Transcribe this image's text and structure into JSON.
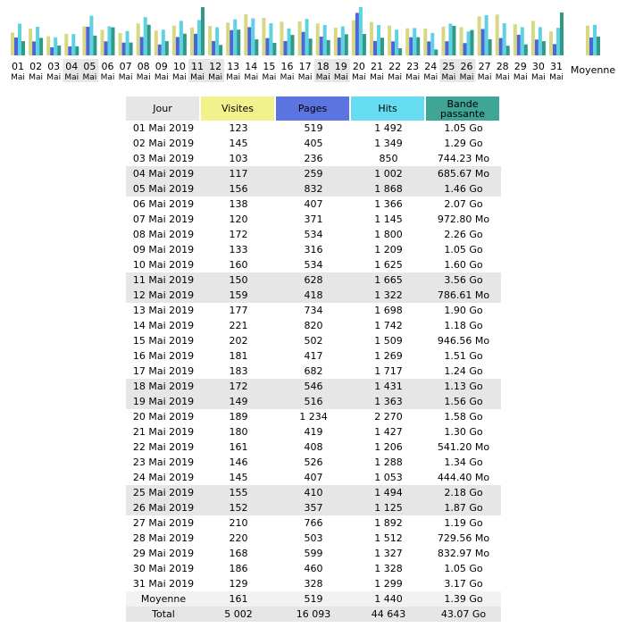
{
  "colors": {
    "visits": "#d8d884",
    "pages": "#4c66d8",
    "hits": "#5fd2e2",
    "bandwidth": "#2f9a88",
    "weekend_bg": "#e6e6e6"
  },
  "chart_data": {
    "type": "bar",
    "categories": [
      "01",
      "02",
      "03",
      "04",
      "05",
      "06",
      "07",
      "08",
      "09",
      "10",
      "11",
      "12",
      "13",
      "14",
      "15",
      "16",
      "17",
      "18",
      "19",
      "20",
      "21",
      "22",
      "23",
      "24",
      "25",
      "26",
      "27",
      "28",
      "29",
      "30",
      "31"
    ],
    "category_sublabel": "Mai",
    "weekend_days": [
      "04",
      "05",
      "11",
      "12",
      "18",
      "19",
      "25",
      "26"
    ],
    "series": [
      {
        "name": "Visites",
        "values": [
          123,
          145,
          103,
          117,
          156,
          138,
          120,
          172,
          133,
          160,
          150,
          159,
          177,
          221,
          202,
          181,
          183,
          172,
          149,
          189,
          180,
          161,
          146,
          145,
          155,
          152,
          210,
          220,
          168,
          186,
          129
        ]
      },
      {
        "name": "Pages",
        "values": [
          519,
          405,
          236,
          259,
          832,
          407,
          371,
          534,
          316,
          534,
          628,
          418,
          734,
          820,
          502,
          417,
          682,
          546,
          516,
          1234,
          419,
          408,
          526,
          407,
          410,
          357,
          766,
          503,
          599,
          460,
          328
        ]
      },
      {
        "name": "Hits",
        "values": [
          1492,
          1349,
          850,
          1002,
          1868,
          1366,
          1145,
          1800,
          1209,
          1625,
          1665,
          1322,
          1698,
          1742,
          1509,
          1269,
          1717,
          1431,
          1363,
          2270,
          1427,
          1206,
          1288,
          1053,
          1494,
          1125,
          1892,
          1512,
          1327,
          1328,
          1299
        ]
      },
      {
        "name": "Bande passante",
        "unit": "Go",
        "values": [
          1.05,
          1.29,
          0.727,
          0.67,
          1.46,
          2.07,
          0.95,
          2.26,
          1.05,
          1.6,
          3.56,
          0.768,
          1.9,
          1.18,
          0.924,
          1.51,
          1.24,
          1.13,
          1.56,
          1.58,
          1.3,
          0.529,
          1.34,
          0.434,
          2.18,
          1.87,
          1.19,
          0.713,
          0.813,
          1.05,
          3.17
        ]
      }
    ],
    "average": {
      "label": "Moyenne",
      "visits": 161,
      "pages": 519,
      "hits": 1440,
      "bandwidth": 1.39
    }
  },
  "table": {
    "headers": {
      "day": "Jour",
      "visits": "Visites",
      "pages": "Pages",
      "hits": "Hits",
      "bw_line1": "Bande",
      "bw_line2": "passante"
    },
    "rows": [
      {
        "day": "01 Mai 2019",
        "visits": "123",
        "pages": "519",
        "hits": "1 492",
        "bw": "1.05 Go",
        "weekend": false
      },
      {
        "day": "02 Mai 2019",
        "visits": "145",
        "pages": "405",
        "hits": "1 349",
        "bw": "1.29 Go",
        "weekend": false
      },
      {
        "day": "03 Mai 2019",
        "visits": "103",
        "pages": "236",
        "hits": "850",
        "bw": "744.23 Mo",
        "weekend": false
      },
      {
        "day": "04 Mai 2019",
        "visits": "117",
        "pages": "259",
        "hits": "1 002",
        "bw": "685.67 Mo",
        "weekend": true
      },
      {
        "day": "05 Mai 2019",
        "visits": "156",
        "pages": "832",
        "hits": "1 868",
        "bw": "1.46 Go",
        "weekend": true
      },
      {
        "day": "06 Mai 2019",
        "visits": "138",
        "pages": "407",
        "hits": "1 366",
        "bw": "2.07 Go",
        "weekend": false
      },
      {
        "day": "07 Mai 2019",
        "visits": "120",
        "pages": "371",
        "hits": "1 145",
        "bw": "972.80 Mo",
        "weekend": false
      },
      {
        "day": "08 Mai 2019",
        "visits": "172",
        "pages": "534",
        "hits": "1 800",
        "bw": "2.26 Go",
        "weekend": false
      },
      {
        "day": "09 Mai 2019",
        "visits": "133",
        "pages": "316",
        "hits": "1 209",
        "bw": "1.05 Go",
        "weekend": false
      },
      {
        "day": "10 Mai 2019",
        "visits": "160",
        "pages": "534",
        "hits": "1 625",
        "bw": "1.60 Go",
        "weekend": false
      },
      {
        "day": "11 Mai 2019",
        "visits": "150",
        "pages": "628",
        "hits": "1 665",
        "bw": "3.56 Go",
        "weekend": true
      },
      {
        "day": "12 Mai 2019",
        "visits": "159",
        "pages": "418",
        "hits": "1 322",
        "bw": "786.61 Mo",
        "weekend": true
      },
      {
        "day": "13 Mai 2019",
        "visits": "177",
        "pages": "734",
        "hits": "1 698",
        "bw": "1.90 Go",
        "weekend": false
      },
      {
        "day": "14 Mai 2019",
        "visits": "221",
        "pages": "820",
        "hits": "1 742",
        "bw": "1.18 Go",
        "weekend": false
      },
      {
        "day": "15 Mai 2019",
        "visits": "202",
        "pages": "502",
        "hits": "1 509",
        "bw": "946.56 Mo",
        "weekend": false
      },
      {
        "day": "16 Mai 2019",
        "visits": "181",
        "pages": "417",
        "hits": "1 269",
        "bw": "1.51 Go",
        "weekend": false
      },
      {
        "day": "17 Mai 2019",
        "visits": "183",
        "pages": "682",
        "hits": "1 717",
        "bw": "1.24 Go",
        "weekend": false
      },
      {
        "day": "18 Mai 2019",
        "visits": "172",
        "pages": "546",
        "hits": "1 431",
        "bw": "1.13 Go",
        "weekend": true
      },
      {
        "day": "19 Mai 2019",
        "visits": "149",
        "pages": "516",
        "hits": "1 363",
        "bw": "1.56 Go",
        "weekend": true
      },
      {
        "day": "20 Mai 2019",
        "visits": "189",
        "pages": "1 234",
        "hits": "2 270",
        "bw": "1.58 Go",
        "weekend": false
      },
      {
        "day": "21 Mai 2019",
        "visits": "180",
        "pages": "419",
        "hits": "1 427",
        "bw": "1.30 Go",
        "weekend": false
      },
      {
        "day": "22 Mai 2019",
        "visits": "161",
        "pages": "408",
        "hits": "1 206",
        "bw": "541.20 Mo",
        "weekend": false
      },
      {
        "day": "23 Mai 2019",
        "visits": "146",
        "pages": "526",
        "hits": "1 288",
        "bw": "1.34 Go",
        "weekend": false
      },
      {
        "day": "24 Mai 2019",
        "visits": "145",
        "pages": "407",
        "hits": "1 053",
        "bw": "444.40 Mo",
        "weekend": false
      },
      {
        "day": "25 Mai 2019",
        "visits": "155",
        "pages": "410",
        "hits": "1 494",
        "bw": "2.18 Go",
        "weekend": true
      },
      {
        "day": "26 Mai 2019",
        "visits": "152",
        "pages": "357",
        "hits": "1 125",
        "bw": "1.87 Go",
        "weekend": true
      },
      {
        "day": "27 Mai 2019",
        "visits": "210",
        "pages": "766",
        "hits": "1 892",
        "bw": "1.19 Go",
        "weekend": false
      },
      {
        "day": "28 Mai 2019",
        "visits": "220",
        "pages": "503",
        "hits": "1 512",
        "bw": "729.56 Mo",
        "weekend": false
      },
      {
        "day": "29 Mai 2019",
        "visits": "168",
        "pages": "599",
        "hits": "1 327",
        "bw": "832.97 Mo",
        "weekend": false
      },
      {
        "day": "30 Mai 2019",
        "visits": "186",
        "pages": "460",
        "hits": "1 328",
        "bw": "1.05 Go",
        "weekend": false
      },
      {
        "day": "31 Mai 2019",
        "visits": "129",
        "pages": "328",
        "hits": "1 299",
        "bw": "3.17 Go",
        "weekend": false
      }
    ],
    "average": {
      "day": "Moyenne",
      "visits": "161",
      "pages": "519",
      "hits": "1 440",
      "bw": "1.39 Go"
    },
    "total": {
      "day": "Total",
      "visits": "5 002",
      "pages": "16 093",
      "hits": "44 643",
      "bw": "43.07 Go"
    }
  }
}
